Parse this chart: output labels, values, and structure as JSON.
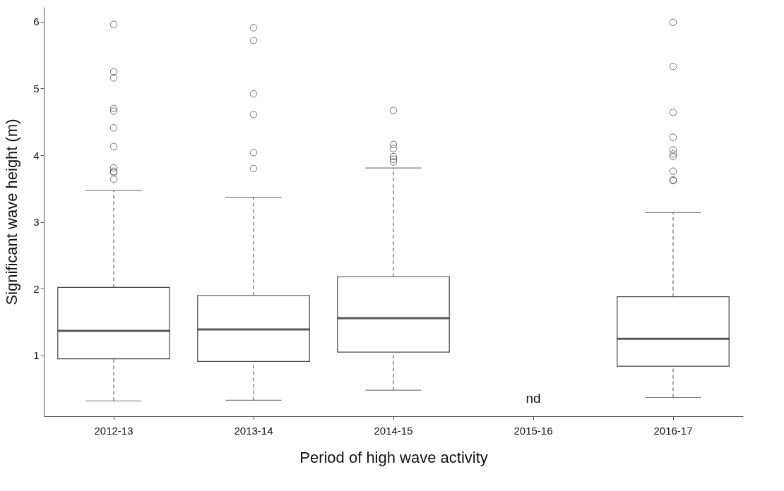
{
  "chart_data": {
    "type": "box",
    "xlabel": "Period of high wave activity",
    "ylabel": "Significant wave height (m)",
    "categories": [
      "2012-13",
      "2013-14",
      "2014-15",
      "2015-16",
      "2016-17"
    ],
    "boxes": [
      {
        "low": 0.32,
        "q1": 0.95,
        "median": 1.37,
        "q3": 2.02,
        "high": 3.47,
        "outliers": [
          5.96,
          5.25,
          5.16,
          4.7,
          4.66,
          4.41,
          4.13,
          3.81,
          3.76,
          3.74,
          3.64
        ]
      },
      {
        "low": 0.33,
        "q1": 0.91,
        "median": 1.39,
        "q3": 1.9,
        "high": 3.37,
        "outliers": [
          5.91,
          5.72,
          4.92,
          4.61,
          4.04,
          3.8
        ]
      },
      {
        "low": 0.48,
        "q1": 1.05,
        "median": 1.56,
        "q3": 2.18,
        "high": 3.81,
        "outliers": [
          4.67,
          4.16,
          4.1,
          3.98,
          3.94,
          3.9
        ]
      },
      null,
      {
        "low": 0.37,
        "q1": 0.84,
        "median": 1.25,
        "q3": 1.88,
        "high": 3.14,
        "outliers": [
          5.99,
          5.33,
          4.64,
          4.27,
          4.08,
          4.02,
          3.98,
          3.76,
          3.63,
          3.62
        ]
      }
    ],
    "annotations": [
      "nd"
    ],
    "ylim": [
      0.09,
      6.22
    ],
    "yticks": [
      1,
      2,
      3,
      4,
      5,
      6
    ]
  }
}
